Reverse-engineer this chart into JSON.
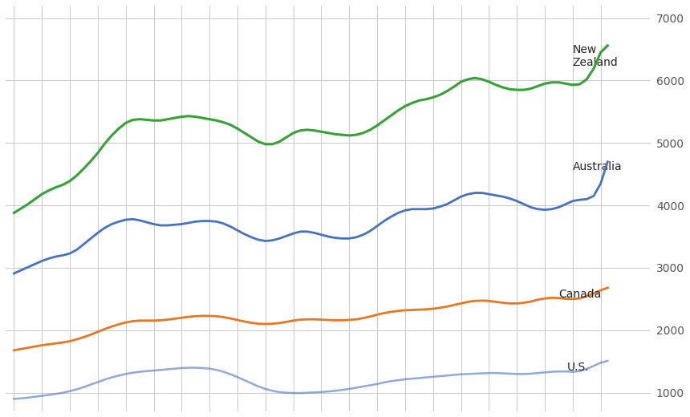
{
  "ylim": [
    700,
    7200
  ],
  "yticks": [
    1000,
    2000,
    3000,
    4000,
    5000,
    6000,
    7000
  ],
  "background_color": "#ffffff",
  "grid_color": "#c8c8c8",
  "nz_color": "#34a234",
  "au_color": "#4472c4",
  "ca_color": "#e87722",
  "us_color": "#4472c4",
  "nz_label": "New\nZealand",
  "au_label": "Australia",
  "ca_label": "Canada",
  "us_label": "U.S.",
  "years": [
    2000.0,
    2000.25,
    2000.5,
    2000.75,
    2001.0,
    2001.25,
    2001.5,
    2001.75,
    2002.0,
    2002.25,
    2002.5,
    2002.75,
    2003.0,
    2003.25,
    2003.5,
    2003.75,
    2004.0,
    2004.25,
    2004.5,
    2004.75,
    2005.0,
    2005.25,
    2005.5,
    2005.75,
    2006.0,
    2006.25,
    2006.5,
    2006.75,
    2007.0,
    2007.25,
    2007.5,
    2007.75,
    2008.0,
    2008.25,
    2008.5,
    2008.75,
    2009.0,
    2009.25,
    2009.5,
    2009.75,
    2010.0,
    2010.25,
    2010.5,
    2010.75,
    2011.0,
    2011.25,
    2011.5,
    2011.75,
    2012.0,
    2012.25,
    2012.5,
    2012.75,
    2013.0,
    2013.25,
    2013.5,
    2013.75,
    2014.0,
    2014.25,
    2014.5,
    2014.75,
    2015.0,
    2015.25,
    2015.5,
    2015.75,
    2016.0,
    2016.25,
    2016.5,
    2016.75,
    2017.0,
    2017.25,
    2017.5,
    2017.75,
    2018.0,
    2018.25,
    2018.5,
    2018.75,
    2019.0,
    2019.25,
    2019.5,
    2019.75,
    2020.0,
    2020.25,
    2020.5,
    2020.75,
    2021.0,
    2021.25
  ],
  "nz": [
    3880,
    3950,
    4020,
    4100,
    4180,
    4240,
    4290,
    4330,
    4390,
    4480,
    4590,
    4710,
    4840,
    4990,
    5120,
    5230,
    5320,
    5370,
    5380,
    5370,
    5360,
    5360,
    5380,
    5400,
    5420,
    5430,
    5420,
    5400,
    5380,
    5360,
    5330,
    5290,
    5230,
    5160,
    5090,
    5020,
    4980,
    4980,
    5020,
    5090,
    5160,
    5200,
    5210,
    5200,
    5180,
    5160,
    5140,
    5130,
    5120,
    5130,
    5160,
    5210,
    5280,
    5360,
    5440,
    5520,
    5590,
    5640,
    5680,
    5700,
    5730,
    5770,
    5830,
    5900,
    5980,
    6020,
    6040,
    6020,
    5980,
    5930,
    5890,
    5860,
    5850,
    5850,
    5870,
    5910,
    5950,
    5970,
    5970,
    5950,
    5930,
    5940,
    6020,
    6190,
    6450,
    6560
  ],
  "au": [
    2910,
    2960,
    3010,
    3060,
    3110,
    3150,
    3180,
    3200,
    3230,
    3290,
    3380,
    3470,
    3560,
    3640,
    3700,
    3740,
    3770,
    3780,
    3760,
    3730,
    3700,
    3680,
    3680,
    3690,
    3700,
    3720,
    3740,
    3750,
    3750,
    3740,
    3710,
    3660,
    3600,
    3540,
    3490,
    3450,
    3430,
    3440,
    3470,
    3510,
    3550,
    3580,
    3580,
    3560,
    3530,
    3500,
    3480,
    3470,
    3470,
    3490,
    3530,
    3590,
    3670,
    3750,
    3820,
    3880,
    3920,
    3940,
    3940,
    3940,
    3950,
    3980,
    4020,
    4080,
    4140,
    4180,
    4200,
    4200,
    4180,
    4160,
    4140,
    4110,
    4070,
    4020,
    3970,
    3940,
    3930,
    3940,
    3970,
    4020,
    4070,
    4090,
    4100,
    4150,
    4350,
    4700
  ],
  "ca": [
    1680,
    1700,
    1720,
    1740,
    1760,
    1775,
    1790,
    1805,
    1825,
    1855,
    1890,
    1930,
    1975,
    2020,
    2060,
    2095,
    2125,
    2145,
    2155,
    2155,
    2155,
    2160,
    2170,
    2185,
    2200,
    2215,
    2225,
    2230,
    2230,
    2225,
    2210,
    2190,
    2165,
    2140,
    2120,
    2105,
    2100,
    2105,
    2115,
    2135,
    2155,
    2170,
    2175,
    2175,
    2170,
    2165,
    2160,
    2160,
    2165,
    2175,
    2195,
    2220,
    2250,
    2275,
    2295,
    2310,
    2320,
    2325,
    2330,
    2335,
    2345,
    2360,
    2380,
    2405,
    2430,
    2455,
    2470,
    2475,
    2470,
    2455,
    2440,
    2430,
    2430,
    2440,
    2460,
    2490,
    2510,
    2520,
    2515,
    2505,
    2500,
    2510,
    2545,
    2590,
    2640,
    2680
  ],
  "us": [
    900,
    910,
    920,
    935,
    950,
    965,
    980,
    1000,
    1025,
    1055,
    1090,
    1130,
    1170,
    1210,
    1245,
    1275,
    1300,
    1320,
    1335,
    1345,
    1355,
    1365,
    1375,
    1385,
    1395,
    1400,
    1400,
    1395,
    1385,
    1365,
    1335,
    1295,
    1250,
    1200,
    1150,
    1100,
    1060,
    1030,
    1010,
    1000,
    995,
    995,
    1000,
    1005,
    1010,
    1020,
    1030,
    1045,
    1060,
    1080,
    1100,
    1120,
    1140,
    1165,
    1185,
    1200,
    1215,
    1225,
    1235,
    1245,
    1255,
    1265,
    1275,
    1285,
    1295,
    1300,
    1305,
    1310,
    1315,
    1315,
    1310,
    1305,
    1300,
    1300,
    1305,
    1315,
    1325,
    1335,
    1340,
    1340,
    1335,
    1345,
    1380,
    1430,
    1480,
    1510
  ]
}
